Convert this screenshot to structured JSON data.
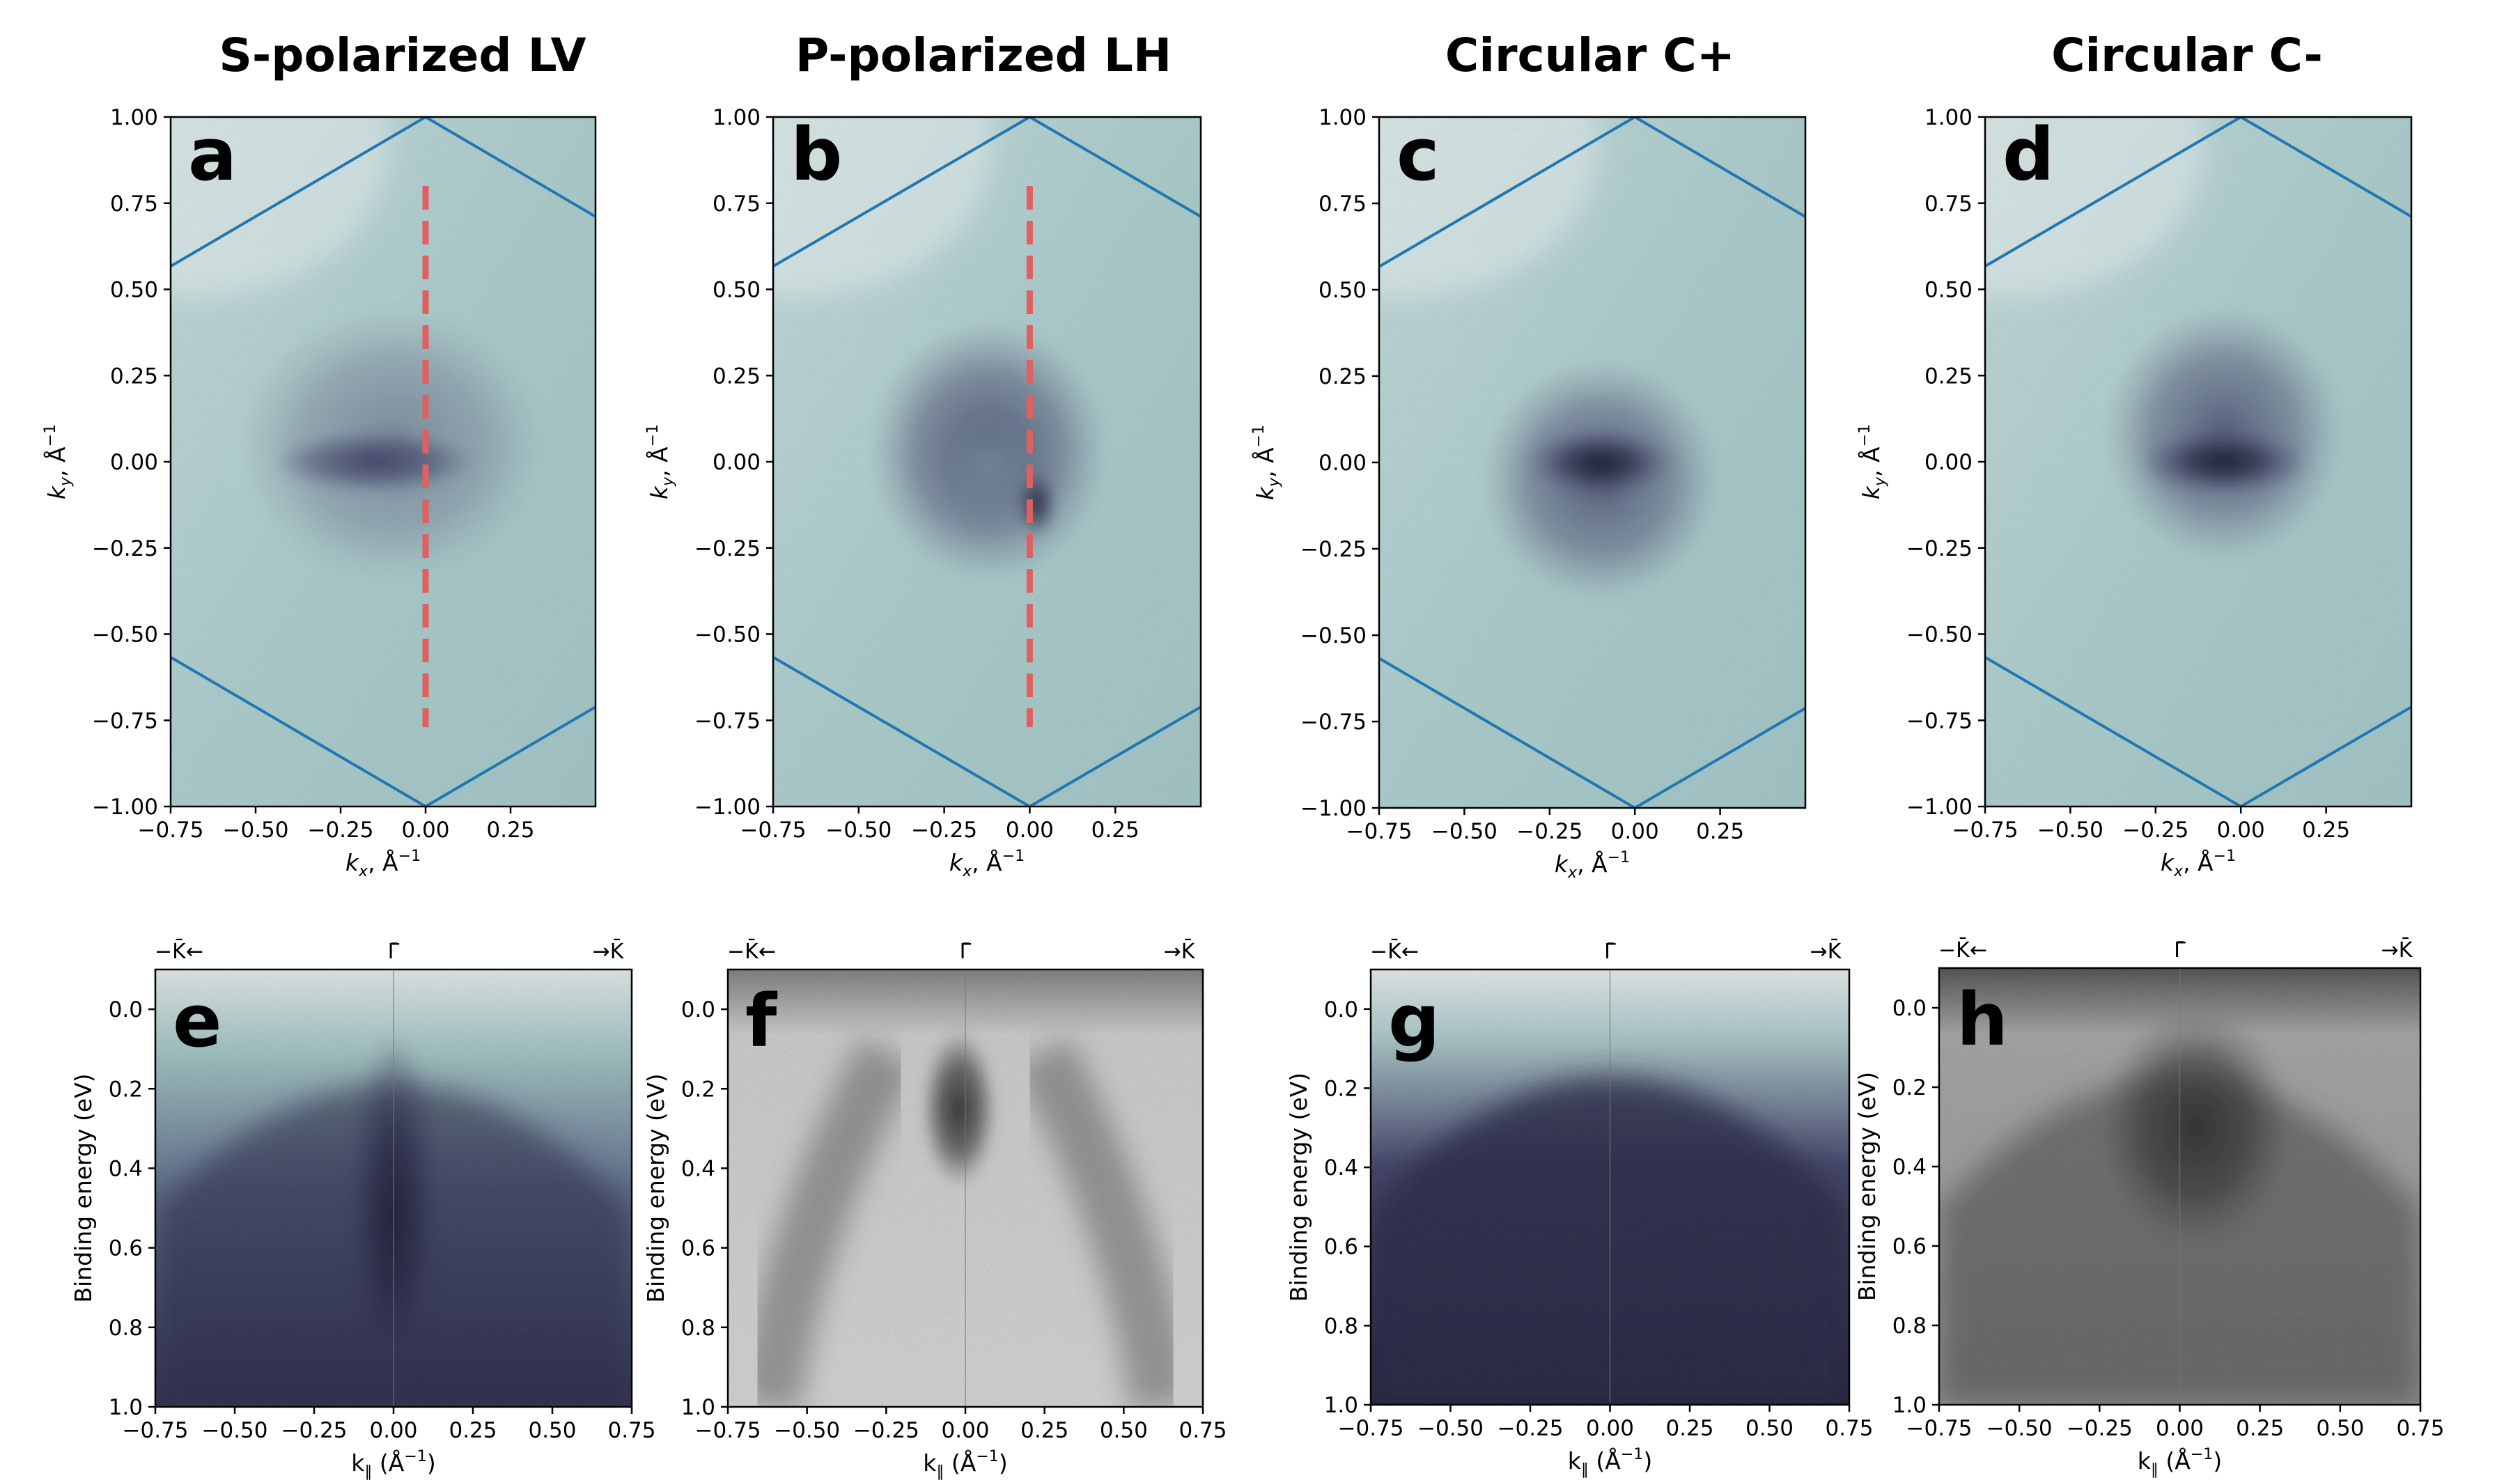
{
  "figure": {
    "titles": [
      "S-polarized LV",
      "P-polarized LH",
      "Circular C+",
      "Circular C-"
    ]
  },
  "colors": {
    "bz_edge": "#1f77b4",
    "cut_line": "#e06060",
    "colormap_bone": [
      "#ffffff",
      "#a6cccd",
      "#3d3b61",
      "#000000"
    ],
    "colormap_gray": [
      "#ffffff",
      "#000000"
    ]
  },
  "chart_data": [
    {
      "panel": "a",
      "type": "heatmap",
      "title": "S-polarized LV",
      "xlabel": "k_x, Å^-1",
      "ylabel": "k_y, Å^-1",
      "xlim": [
        -0.75,
        0.5
      ],
      "ylim": [
        -1.0,
        1.0
      ],
      "xticks": [
        "−0.75",
        "−0.50",
        "−0.25",
        "0.00",
        "0.25"
      ],
      "yticks": [
        "−1.00",
        "−0.75",
        "−0.50",
        "−0.25",
        "0.00",
        "0.25",
        "0.50",
        "0.75",
        "1.00"
      ],
      "colormap": "bone",
      "features": [
        {
          "shape": "ellipse",
          "kx": -0.15,
          "ky": 0.0,
          "rx": 0.3,
          "ry": 0.09,
          "intensity": 1.0
        },
        {
          "shape": "ellipse",
          "kx": -0.1,
          "ky": 0.05,
          "rx": 0.45,
          "ry": 0.4,
          "intensity": 0.35
        }
      ],
      "bz_hexagon": {
        "center": [
          0.0,
          0.0
        ],
        "vertices_ky": [
          1.0,
          -1.0
        ]
      },
      "cut_line": {
        "kx": 0.0,
        "ky_range": [
          -0.77,
          0.8
        ]
      }
    },
    {
      "panel": "b",
      "type": "heatmap",
      "title": "P-polarized LH",
      "xlabel": "k_x, Å^-1",
      "ylabel": "k_y, Å^-1",
      "xlim": [
        -0.75,
        0.5
      ],
      "ylim": [
        -1.0,
        1.0
      ],
      "xticks": [
        "−0.75",
        "−0.50",
        "−0.25",
        "0.00",
        "0.25"
      ],
      "yticks": [
        "−1.00",
        "−0.75",
        "−0.50",
        "−0.25",
        "0.00",
        "0.25",
        "0.50",
        "0.75",
        "1.00"
      ],
      "colormap": "bone",
      "features": [
        {
          "shape": "ellipse",
          "kx": -0.12,
          "ky": 0.03,
          "rx": 0.35,
          "ry": 0.38,
          "intensity": 0.75
        },
        {
          "shape": "ellipse",
          "kx": -0.12,
          "ky": 0.0,
          "rx": 0.13,
          "ry": 0.15,
          "intensity": -0.45
        },
        {
          "shape": "ellipse",
          "kx": 0.02,
          "ky": -0.12,
          "rx": 0.06,
          "ry": 0.1,
          "intensity": 0.5
        }
      ],
      "bz_hexagon": {
        "center": [
          0.0,
          0.0
        ],
        "vertices_ky": [
          1.0,
          -1.0
        ]
      },
      "cut_line": {
        "kx": 0.0,
        "ky_range": [
          -0.77,
          0.8
        ]
      }
    },
    {
      "panel": "c",
      "type": "heatmap",
      "title": "Circular C+",
      "xlabel": "k_x, Å^-1",
      "ylabel": "k_y, Å^-1",
      "xlim": [
        -0.75,
        0.5
      ],
      "ylim": [
        -1.0,
        1.0
      ],
      "xticks": [
        "−0.75",
        "−0.50",
        "−0.25",
        "0.00",
        "0.25"
      ],
      "yticks": [
        "−1.00",
        "−0.75",
        "−0.50",
        "−0.25",
        "0.00",
        "0.25",
        "0.50",
        "0.75",
        "1.00"
      ],
      "colormap": "bone",
      "features": [
        {
          "shape": "ellipse",
          "kx": -0.1,
          "ky": -0.05,
          "rx": 0.35,
          "ry": 0.35,
          "intensity": 0.7
        },
        {
          "shape": "ellipse",
          "kx": -0.1,
          "ky": 0.0,
          "rx": 0.22,
          "ry": 0.1,
          "intensity": 0.6
        }
      ],
      "bz_hexagon": {
        "center": [
          0.0,
          0.0
        ],
        "vertices_ky": [
          1.0,
          -1.0
        ]
      }
    },
    {
      "panel": "d",
      "type": "heatmap",
      "title": "Circular C-",
      "xlabel": "k_x, Å^-1",
      "ylabel": "k_y, Å^-1",
      "xlim": [
        -0.75,
        0.5
      ],
      "ylim": [
        -1.0,
        1.0
      ],
      "xticks": [
        "−0.75",
        "−0.50",
        "−0.25",
        "0.00",
        "0.25"
      ],
      "yticks": [
        "−1.00",
        "−0.75",
        "−0.50",
        "−0.25",
        "0.00",
        "0.25",
        "0.50",
        "0.75",
        "1.00"
      ],
      "colormap": "bone",
      "features": [
        {
          "shape": "ellipse",
          "kx": -0.05,
          "ky": 0.08,
          "rx": 0.35,
          "ry": 0.37,
          "intensity": 0.7
        },
        {
          "shape": "ellipse",
          "kx": -0.05,
          "ky": 0.0,
          "rx": 0.25,
          "ry": 0.1,
          "intensity": 0.6
        }
      ],
      "bz_hexagon": {
        "center": [
          0.0,
          0.0
        ],
        "vertices_ky": [
          1.0,
          -1.0
        ]
      }
    },
    {
      "panel": "e",
      "type": "heatmap",
      "xlabel": "k_∥ (Å^-1)",
      "ylabel": "Binding energy (eV)",
      "xlim": [
        -0.75,
        0.75
      ],
      "ylim": [
        1.0,
        -0.1
      ],
      "xticks": [
        "−0.75",
        "−0.50",
        "−0.25",
        "0.00",
        "0.25",
        "0.50",
        "0.75"
      ],
      "yticks": [
        "0.0",
        "0.2",
        "0.4",
        "0.6",
        "0.8",
        "1.0"
      ],
      "high_symmetry": [
        "−K̄←",
        "Γ̄",
        "→K̄"
      ],
      "colormap": "bone",
      "features": [
        {
          "shape": "band",
          "k": 0.0,
          "e": 0.45,
          "halfwidth": 0.15,
          "intensity": 0.8
        },
        {
          "shape": "dome",
          "top_e": 0.08,
          "intensity": 0.55
        }
      ]
    },
    {
      "panel": "f",
      "type": "heatmap",
      "xlabel": "k_∥ (Å^-1)",
      "ylabel": "Binding energy (eV)",
      "xlim": [
        -0.75,
        0.75
      ],
      "ylim": [
        1.0,
        -0.1
      ],
      "xticks": [
        "−0.75",
        "−0.50",
        "−0.25",
        "0.00",
        "0.25",
        "0.50",
        "0.75"
      ],
      "yticks": [
        "0.0",
        "0.2",
        "0.4",
        "0.6",
        "0.8",
        "1.0"
      ],
      "high_symmetry": [
        "−K̄←",
        "Γ̄",
        "→K̄"
      ],
      "colormap": "gray",
      "features": [
        {
          "shape": "blob",
          "k": -0.02,
          "e": 0.25,
          "rk": 0.12,
          "re": 0.2,
          "intensity": 0.8
        },
        {
          "shape": "branches",
          "intensity": 0.45
        }
      ]
    },
    {
      "panel": "g",
      "type": "heatmap",
      "xlabel": "k_∥ (Å^-1)",
      "ylabel": "Binding energy (eV)",
      "xlim": [
        -0.75,
        0.75
      ],
      "ylim": [
        1.0,
        -0.1
      ],
      "xticks": [
        "−0.75",
        "−0.50",
        "−0.25",
        "0.00",
        "0.25",
        "0.50",
        "0.75"
      ],
      "yticks": [
        "0.0",
        "0.2",
        "0.4",
        "0.6",
        "0.8",
        "1.0"
      ],
      "high_symmetry": [
        "−K̄←",
        "Γ̄",
        "→K̄"
      ],
      "colormap": "bone",
      "features": [
        {
          "shape": "dome",
          "top_e": 0.05,
          "intensity": 0.8
        }
      ]
    },
    {
      "panel": "h",
      "type": "heatmap",
      "xlabel": "k_∥ (Å^-1)",
      "ylabel": "Binding energy (eV)",
      "xlim": [
        -0.75,
        0.75
      ],
      "ylim": [
        1.0,
        -0.1
      ],
      "xticks": [
        "−0.75",
        "−0.50",
        "−0.25",
        "0.00",
        "0.25",
        "0.50",
        "0.75"
      ],
      "yticks": [
        "0.0",
        "0.2",
        "0.4",
        "0.6",
        "0.8",
        "1.0"
      ],
      "high_symmetry": [
        "−K̄←",
        "Γ̄",
        "→K̄"
      ],
      "colormap": "gray",
      "features": [
        {
          "shape": "blob",
          "k": 0.05,
          "e": 0.3,
          "rk": 0.3,
          "re": 0.3,
          "intensity": 0.75
        },
        {
          "shape": "dome",
          "top_e": 0.05,
          "intensity": 0.45
        }
      ]
    }
  ]
}
